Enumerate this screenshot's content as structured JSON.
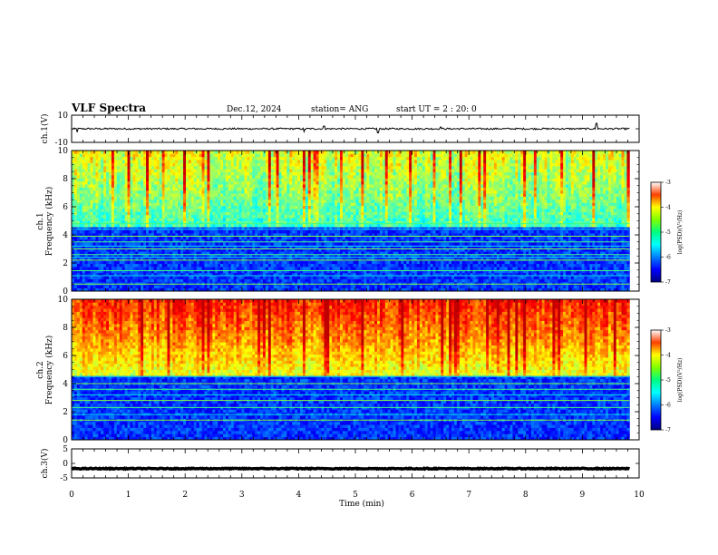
{
  "header": {
    "title": "VLF Spectra",
    "date": "Dec.12, 2024",
    "station": "station= ANG",
    "start_time": "start  UT =   2 : 20: 0"
  },
  "chart_data": [
    {
      "type": "line",
      "panel": "ch1-waveform",
      "ylabel": "ch.1(V)",
      "ylim": [
        -10,
        10
      ],
      "y_ticks": [
        "10",
        "-10"
      ],
      "x_range": [
        0,
        9.83
      ],
      "baseline": 0,
      "noise_amplitude": 0.6,
      "spikes": [
        {
          "x": 0.1,
          "y": -2.5
        },
        {
          "x": 4.1,
          "y": -2.2
        },
        {
          "x": 4.45,
          "y": 2.0
        },
        {
          "x": 5.4,
          "y": -3.0
        },
        {
          "x": 6.5,
          "y": 1.5
        },
        {
          "x": 9.25,
          "y": 4.0
        }
      ],
      "color": "#000000"
    },
    {
      "type": "heatmap",
      "panel": "ch1-spectrogram",
      "ylabel_channel": "ch.1",
      "ylabel": "Frequency (kHz)",
      "ylim": [
        0,
        10
      ],
      "y_ticks": [
        "0",
        "2",
        "4",
        "6",
        "8",
        "10"
      ],
      "x_range": [
        0,
        9.83
      ],
      "colorbar": {
        "label": "log(PSD)(V²/Hz)",
        "ticks": [
          "-3",
          "-4",
          "-5",
          "-6",
          "-7"
        ],
        "range": [
          -7,
          -3
        ]
      },
      "horizontal_lines_khz": [
        0.5,
        1.1,
        1.45,
        2.2,
        2.4,
        2.6,
        3.0,
        3.2,
        3.5,
        3.9,
        4.4,
        4.8
      ],
      "background_level": [
        -5.7,
        -5.2
      ]
    },
    {
      "type": "heatmap",
      "panel": "ch2-spectrogram",
      "ylabel_channel": "ch.2",
      "ylabel": "Frequency (kHz)",
      "ylim": [
        0,
        10
      ],
      "y_ticks": [
        "0",
        "2",
        "4",
        "6",
        "8",
        "10"
      ],
      "x_range": [
        0,
        9.83
      ],
      "colorbar": {
        "label": "log(PSD)(V²/Hz)",
        "ticks": [
          "-3",
          "-4",
          "-5",
          "-6",
          "-7"
        ],
        "range": [
          -7,
          -3
        ]
      },
      "horizontal_lines_khz": [
        1.4,
        1.8,
        2.3,
        2.8,
        3.2,
        3.6,
        4.0,
        4.5
      ],
      "background_level": [
        -5.0,
        -4.2
      ]
    },
    {
      "type": "line",
      "panel": "ch3-waveform",
      "ylabel": "ch.3(V)",
      "ylim": [
        -5,
        5
      ],
      "y_ticks": [
        "5",
        "0",
        "-5"
      ],
      "x_range": [
        0,
        9.83
      ],
      "baseline": -1.8,
      "noise_amplitude": 0.15,
      "color": "#000000"
    }
  ],
  "x_axis": {
    "label": "Time (min)",
    "range": [
      0,
      10
    ],
    "ticks": [
      "0",
      "1",
      "2",
      "3",
      "4",
      "5",
      "6",
      "7",
      "8",
      "9",
      "10"
    ]
  }
}
